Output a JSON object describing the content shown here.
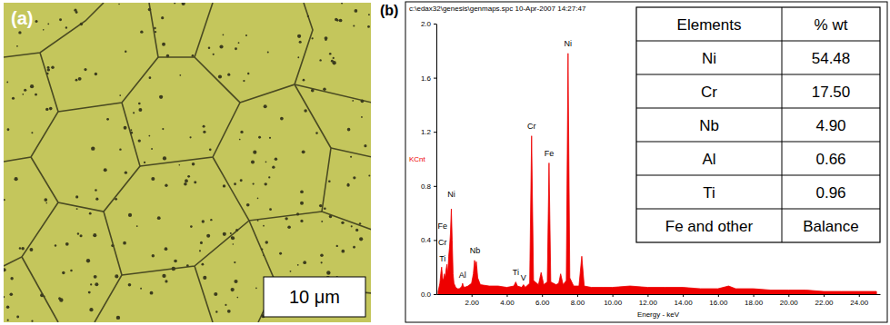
{
  "panel_a": {
    "label": "(a)",
    "scale_bar": "10 μm"
  },
  "panel_b": {
    "label": "(b)"
  },
  "chart_data": {
    "type": "area",
    "title": "c:\\edax32\\genesis\\genmaps.spc 10-Apr-2007 14:27:47",
    "x_label": "Energy - keV",
    "y_label": "KCnt",
    "color": "#ee0000",
    "grid": false,
    "xlim": [
      0,
      25.2
    ],
    "ylim": [
      0,
      2.0
    ],
    "xticks": [
      {
        "value": 2,
        "label": "2.00"
      },
      {
        "value": 4,
        "label": "4.00"
      },
      {
        "value": 6,
        "label": "6.00"
      },
      {
        "value": 8,
        "label": "8.00"
      },
      {
        "value": 10,
        "label": "10.00"
      },
      {
        "value": 12,
        "label": "12.00"
      },
      {
        "value": 14,
        "label": "14.00"
      },
      {
        "value": 16,
        "label": "16.00"
      },
      {
        "value": 18,
        "label": "18.00"
      },
      {
        "value": 20,
        "label": "20.00"
      },
      {
        "value": 22,
        "label": "22.00"
      },
      {
        "value": 24,
        "label": "24.00"
      }
    ],
    "yticks": [
      {
        "value": 0,
        "label": "0.0"
      },
      {
        "value": 0.4,
        "label": "0.4"
      },
      {
        "value": 0.8,
        "label": "0.8"
      },
      {
        "value": 1.2,
        "label": "1.2"
      },
      {
        "value": 1.6,
        "label": "1.6"
      },
      {
        "value": 2,
        "label": "2.0"
      }
    ],
    "x": [
      0.1,
      0.2,
      0.25,
      0.3,
      0.35,
      0.4,
      0.45,
      0.5,
      0.55,
      0.6,
      0.65,
      0.7,
      0.75,
      0.8,
      0.85,
      0.9,
      0.95,
      1.0,
      1.1,
      1.2,
      1.3,
      1.4,
      1.45,
      1.49,
      1.53,
      1.6,
      1.8,
      2.0,
      2.1,
      2.17,
      2.22,
      2.27,
      2.35,
      2.5,
      3.0,
      3.5,
      4.0,
      4.4,
      4.51,
      4.6,
      4.85,
      4.95,
      5.05,
      5.3,
      5.41,
      5.52,
      5.8,
      5.95,
      6.1,
      6.3,
      6.4,
      6.5,
      6.8,
      6.95,
      7.06,
      7.2,
      7.38,
      7.48,
      7.58,
      7.8,
      8.1,
      8.26,
      8.4,
      8.8,
      9.5,
      10,
      11,
      12,
      13,
      14,
      15,
      16,
      16.6,
      17,
      18,
      19,
      20,
      21,
      22,
      23,
      24,
      25
    ],
    "values": [
      0.02,
      0.08,
      0.15,
      0.2,
      0.12,
      0.1,
      0.15,
      0.12,
      0.18,
      0.22,
      0.15,
      0.28,
      0.35,
      0.45,
      0.63,
      0.4,
      0.15,
      0.08,
      0.05,
      0.04,
      0.04,
      0.05,
      0.06,
      0.08,
      0.06,
      0.05,
      0.06,
      0.08,
      0.15,
      0.25,
      0.2,
      0.24,
      0.12,
      0.07,
      0.06,
      0.06,
      0.05,
      0.06,
      0.09,
      0.06,
      0.05,
      0.07,
      0.05,
      0.08,
      1.17,
      0.1,
      0.07,
      0.16,
      0.07,
      0.09,
      0.97,
      0.09,
      0.07,
      0.08,
      0.15,
      0.07,
      0.1,
      1.78,
      0.12,
      0.06,
      0.06,
      0.28,
      0.06,
      0.05,
      0.05,
      0.05,
      0.06,
      0.05,
      0.05,
      0.05,
      0.04,
      0.04,
      0.06,
      0.04,
      0.04,
      0.03,
      0.03,
      0.03,
      0.02,
      0.02,
      0.02,
      0.02
    ],
    "annotations": [
      {
        "text": "Ni",
        "x": 0.85,
        "y": 0.72
      },
      {
        "text": "Fe",
        "x": 0.35,
        "y": 0.48
      },
      {
        "text": "Cr",
        "x": 0.35,
        "y": 0.36
      },
      {
        "text": "Ti",
        "x": 0.35,
        "y": 0.24
      },
      {
        "text": "Al",
        "x": 1.49,
        "y": 0.12
      },
      {
        "text": "Nb",
        "x": 2.2,
        "y": 0.3
      },
      {
        "text": "Ti",
        "x": 4.51,
        "y": 0.14
      },
      {
        "text": "V",
        "x": 4.95,
        "y": 0.1
      },
      {
        "text": "Cr",
        "x": 5.41,
        "y": 1.22
      },
      {
        "text": "Fe",
        "x": 6.4,
        "y": 1.02
      },
      {
        "text": "Ni",
        "x": 7.48,
        "y": 1.83
      }
    ]
  },
  "table": {
    "columns": [
      "Elements",
      "% wt"
    ],
    "rows": [
      [
        "Ni",
        "54.48"
      ],
      [
        "Cr",
        "17.50"
      ],
      [
        "Nb",
        "4.90"
      ],
      [
        "Al",
        "0.66"
      ],
      [
        "Ti",
        "0.96"
      ],
      [
        "Fe and other",
        "Balance"
      ]
    ]
  }
}
